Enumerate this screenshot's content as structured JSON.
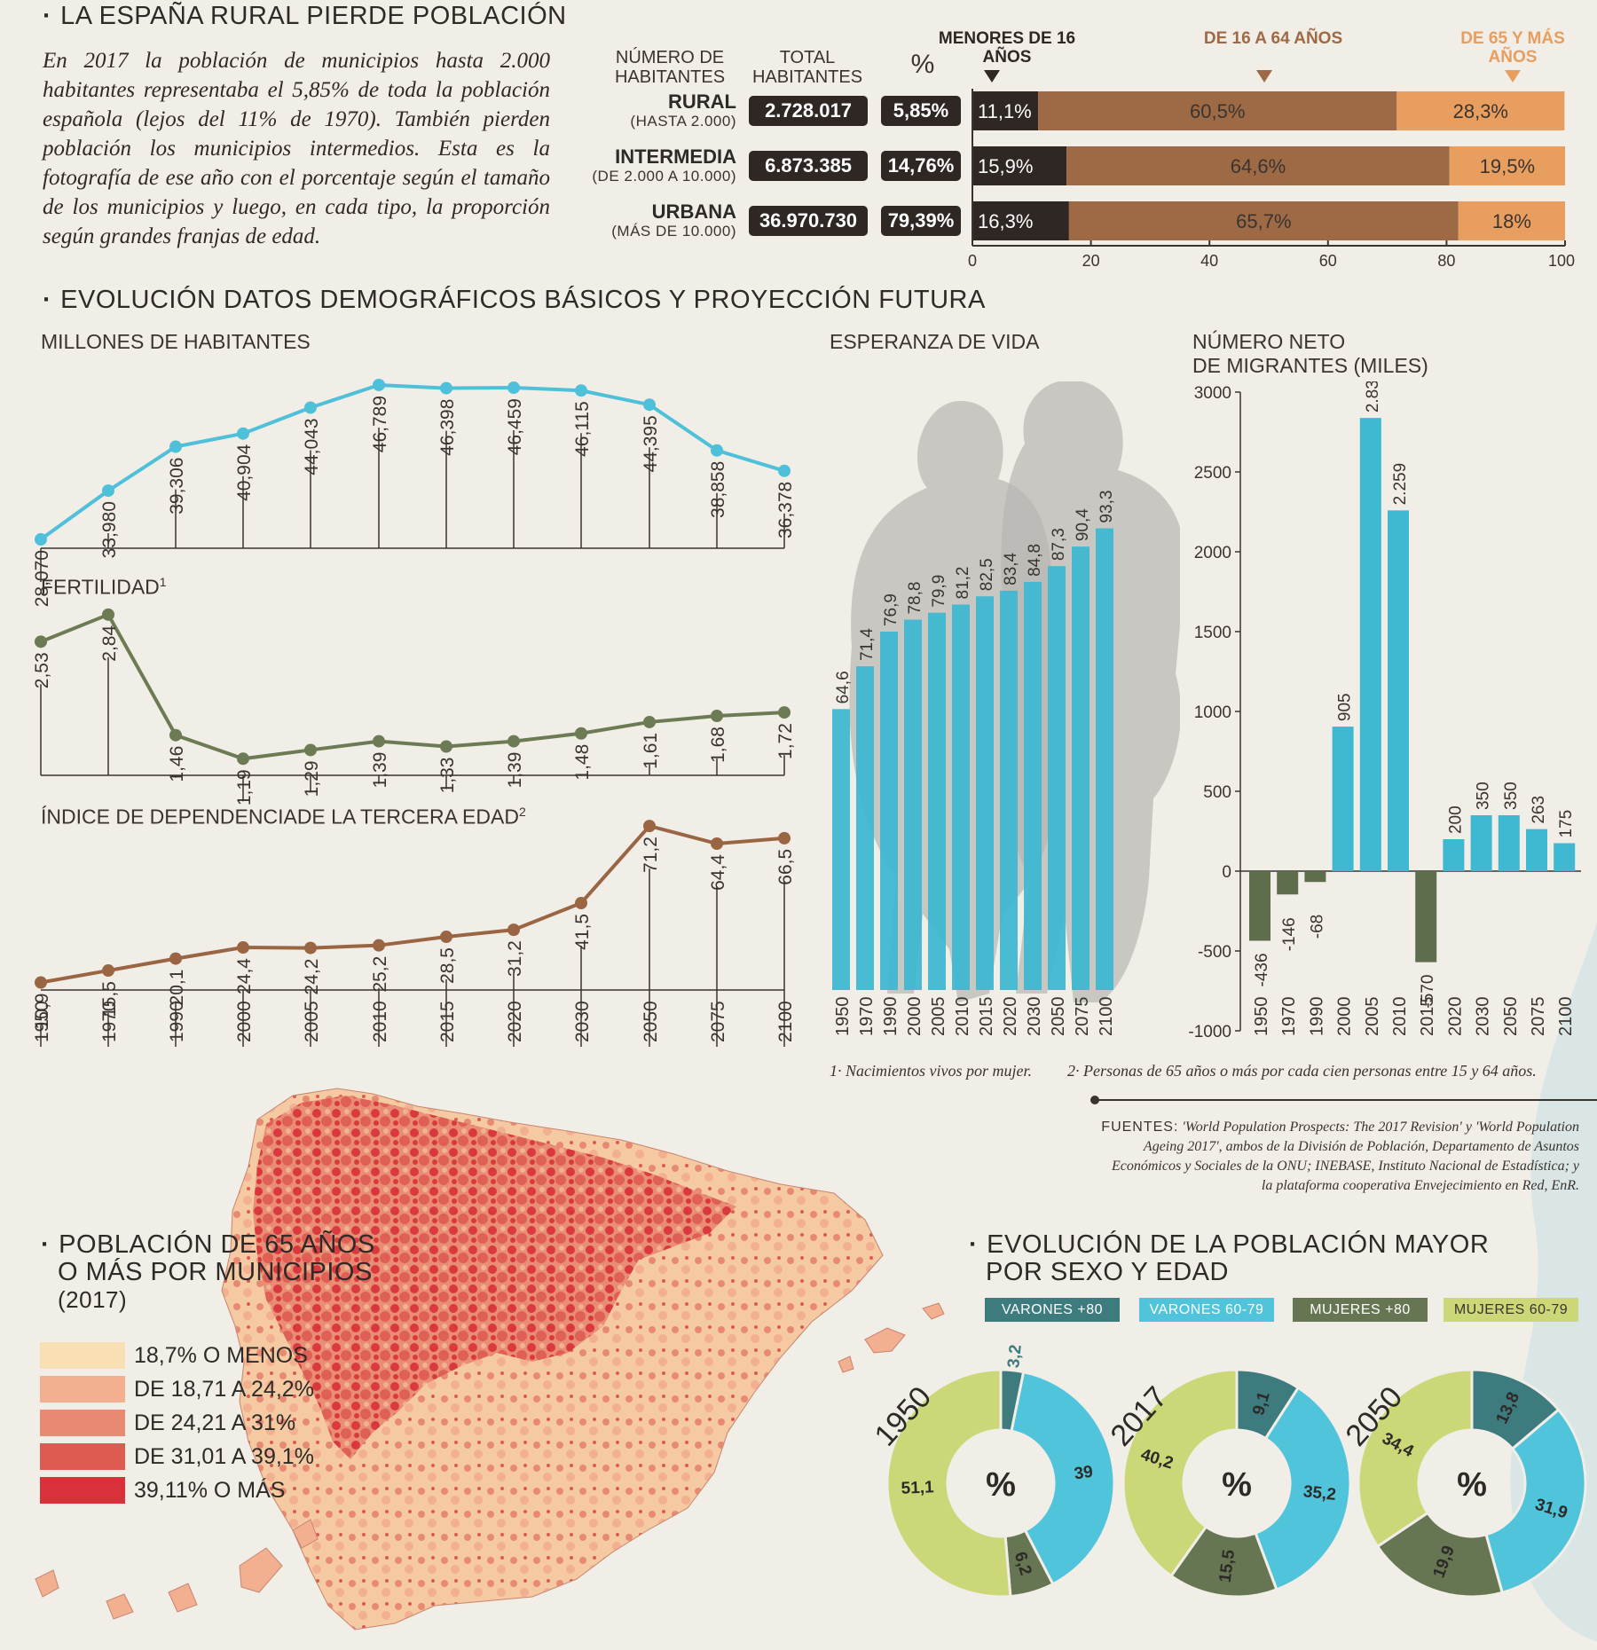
{
  "colors": {
    "background": "#f1ede7",
    "under16": "#2f2724",
    "age16_64": "#9d6a45",
    "age65": "#e89e5f",
    "population_line": "#4fc0d9",
    "fertility_line": "#6c7b54",
    "dependency_line": "#9a6543",
    "life_bars": "#3fb8d2",
    "migrants_pos": "#3fb8d2",
    "migrants_neg": "#5e6e4c",
    "varones_80": "#3d7b7f",
    "varones_60_79": "#4fc4da",
    "mujeres_80": "#667552",
    "mujeres_60_79": "#ccd778",
    "map_scale": [
      "#f8dfb4",
      "#f2b090",
      "#e88a72",
      "#de5b52",
      "#d93139"
    ]
  },
  "rural": {
    "title": "LA ESPAÑA RURAL PIERDE POBLACIÓN",
    "intro": "En 2017 la población de municipios hasta 2.000 habitantes representaba el 5,85% de toda la población española (lejos del 11% de 1970). También pierden población los municipios intermedios. Esta es la fotografía de ese año con el porcentaje según el tamaño de los municipios y luego, en cada tipo, la proporción según grandes franjas de edad.",
    "header_habitantes": "NÚMERO DE HABITANTES",
    "header_total": "TOTAL HABITANTES",
    "header_pct": "%",
    "age_headers": [
      "MENORES DE 16 AÑOS",
      "DE 16 A 64 AÑOS",
      "DE 65 Y MÁS AÑOS"
    ],
    "rows": [
      {
        "name": "RURAL",
        "sub": "(HASTA 2.000)",
        "total": "2.728.017",
        "pct": "5,85%",
        "shares": [
          11.1,
          60.5,
          28.3
        ],
        "labels": [
          "11,1%",
          "60,5%",
          "28,3%"
        ]
      },
      {
        "name": "INTERMEDIA",
        "sub": "(DE 2.000 A 10.000)",
        "total": "6.873.385",
        "pct": "14,76%",
        "shares": [
          15.9,
          64.6,
          19.5
        ],
        "labels": [
          "15,9%",
          "64,6%",
          "19,5%"
        ]
      },
      {
        "name": "URBANA",
        "sub": "(MÁS DE 10.000)",
        "total": "36.970.730",
        "pct": "79,39%",
        "shares": [
          16.3,
          65.7,
          18.0
        ],
        "labels": [
          "16,3%",
          "65,7%",
          "18%"
        ]
      }
    ],
    "axis_ticks": [
      "0",
      "20",
      "40",
      "60",
      "80",
      "100"
    ]
  },
  "evolution": {
    "title": "EVOLUCIÓN DATOS DEMOGRÁFICOS BÁSICOS Y PROYECCIÓN FUTURA",
    "pop_label": "MILLONES DE HABITANTES",
    "fert_label": "FERTILIDAD",
    "fert_sup": "1",
    "dep_label": "ÍNDICE DE DEPENDENCIADE LA TERCERA EDAD",
    "dep_sup": "2",
    "life_label": "ESPERANZA DE VIDA",
    "mig_label_1": "NÚMERO NETO",
    "mig_label_2": "DE MIGRANTES (MILES)"
  },
  "chart_data": [
    {
      "type": "bar",
      "title": "LA ESPAÑA RURAL PIERDE POBLACIÓN",
      "stacked": true,
      "categories": [
        "RURAL",
        "INTERMEDIA",
        "URBANA"
      ],
      "series": [
        {
          "name": "MENORES DE 16 AÑOS",
          "values": [
            11.1,
            15.9,
            16.3
          ]
        },
        {
          "name": "DE 16 A 64 AÑOS",
          "values": [
            60.5,
            64.6,
            65.7
          ]
        },
        {
          "name": "DE 65 Y MÁS AÑOS",
          "values": [
            28.3,
            19.5,
            18.0
          ]
        }
      ],
      "xlim": [
        0,
        100
      ]
    },
    {
      "type": "line",
      "title": "MILLONES DE HABITANTES",
      "x": [
        "1950",
        "1970",
        "1990",
        "2000",
        "2005",
        "2010",
        "2015",
        "2020",
        "2030",
        "2050",
        "2075",
        "2100"
      ],
      "values": [
        28.07,
        33.98,
        39.306,
        40.904,
        44.043,
        46.789,
        46.398,
        46.459,
        46.115,
        44.395,
        38.858,
        36.378
      ],
      "labels": [
        "28,070",
        "33,980",
        "39,306",
        "40,904",
        "44,043",
        "46,789",
        "46,398",
        "46,459",
        "46,115",
        "44,395",
        "38,858",
        "36,378"
      ]
    },
    {
      "type": "line",
      "title": "FERTILIDAD",
      "x": [
        "1950",
        "1970",
        "1990",
        "2000",
        "2005",
        "2010",
        "2015",
        "2020",
        "2030",
        "2050",
        "2075",
        "2100"
      ],
      "values": [
        2.53,
        2.84,
        1.46,
        1.19,
        1.29,
        1.39,
        1.33,
        1.39,
        1.48,
        1.61,
        1.68,
        1.72
      ],
      "labels": [
        "2,53",
        "2,84",
        "1,46",
        "1,19",
        "1,29",
        "1,39",
        "1,33",
        "1,39",
        "1,48",
        "1,61",
        "1,68",
        "1,72"
      ]
    },
    {
      "type": "line",
      "title": "ÍNDICE DE DEPENDENCIADE LA TERCERA EDAD",
      "x": [
        "1950",
        "1970",
        "1990",
        "2000",
        "2005",
        "2010",
        "2015",
        "2020",
        "2030",
        "2050",
        "2075",
        "2100"
      ],
      "values": [
        10.9,
        15.5,
        20.1,
        24.4,
        24.2,
        25.2,
        28.5,
        31.2,
        41.5,
        71.2,
        64.4,
        66.5
      ],
      "labels": [
        "10,9",
        "15,5",
        "20,1",
        "24,4",
        "24,2",
        "25,2",
        "28,5",
        "31,2",
        "41,5",
        "71,2",
        "64,4",
        "66,5"
      ]
    },
    {
      "type": "bar",
      "title": "ESPERANZA DE VIDA",
      "categories": [
        "1950",
        "1970",
        "1990",
        "2000",
        "2005",
        "2010",
        "2015",
        "2020",
        "2030",
        "2050",
        "2075",
        "2100"
      ],
      "values": [
        64.6,
        71.4,
        76.9,
        78.8,
        79.9,
        81.2,
        82.5,
        83.4,
        84.8,
        87.3,
        90.4,
        93.3
      ],
      "labels": [
        "64,6",
        "71,4",
        "76,9",
        "78,8",
        "79,9",
        "81,2",
        "82,5",
        "83,4",
        "84,8",
        "87,3",
        "90,4",
        "93,3"
      ]
    },
    {
      "type": "bar",
      "title": "NÚMERO NETO DE MIGRANTES (MILES)",
      "categories": [
        "1950",
        "1970",
        "1990",
        "2000",
        "2005",
        "2010",
        "2015",
        "2020",
        "2030",
        "2050",
        "2075",
        "2100"
      ],
      "values": [
        -436,
        -146,
        -68,
        905,
        2838,
        2259,
        -570,
        200,
        350,
        350,
        263,
        175
      ],
      "labels": [
        "-436",
        "-146",
        "-68",
        "905",
        "2.838",
        "2.259",
        "-570",
        "200",
        "350",
        "350",
        "263",
        "175"
      ],
      "ylim": [
        -1000,
        3000
      ],
      "yticks": [
        "3000",
        "2500",
        "2000",
        "1500",
        "1000",
        "500",
        "0",
        "-500",
        "-1000"
      ]
    },
    {
      "type": "pie",
      "title": "EVOLUCIÓN DE LA POBLACIÓN MAYOR POR SEXO Y EDAD",
      "legend": [
        "VARONES +80",
        "VARONES 60-79",
        "MUJERES +80",
        "MUJERES 60-79"
      ],
      "center_label": "%",
      "donuts": [
        {
          "year": "1950",
          "values": [
            3.2,
            39,
            6.2,
            51.1
          ],
          "labels": [
            "3,2",
            "39",
            "6,2",
            "51,1"
          ]
        },
        {
          "year": "2017",
          "values": [
            9.1,
            35.2,
            15.5,
            40.2
          ],
          "labels": [
            "9,1",
            "35,2",
            "15,5",
            "40,2"
          ]
        },
        {
          "year": "2050",
          "values": [
            13.8,
            31.9,
            19.9,
            34.4
          ],
          "labels": [
            "13,8",
            "31,9",
            "19,9",
            "34,4"
          ]
        }
      ]
    }
  ],
  "map": {
    "title_1": "POBLACIÓN DE 65 AÑOS",
    "title_2": "O MÁS POR MUNICIPIOS",
    "title_3": "(2017)",
    "legend": [
      "18,7% O MENOS",
      "DE 18,71 A 24,2%",
      "DE 24,21 A 31%",
      "DE 31,01 A 39,1%",
      "39,11% O MÁS"
    ]
  },
  "pop_sex": {
    "title_1": "EVOLUCIÓN DE LA POBLACIÓN MAYOR",
    "title_2": "POR SEXO Y EDAD"
  },
  "notes": {
    "n1": "1· Nacimientos vivos por mujer.",
    "n2": "2· Personas de 65 años o más por cada cien personas entre 15 y 64 años.",
    "src_key": "FUENTES:",
    "src_1": "'World Population Prospects: The 2017 Revision' y 'World Population Ageing 2017'",
    "src_2": ", ambos de la División de Población, Departamento de Asuntos Económicos y Sociales de la ONU; INEBASE, Instituto Nacional de Estadística; y la plataforma cooperativa Envejecimiento en Red, EnR."
  }
}
